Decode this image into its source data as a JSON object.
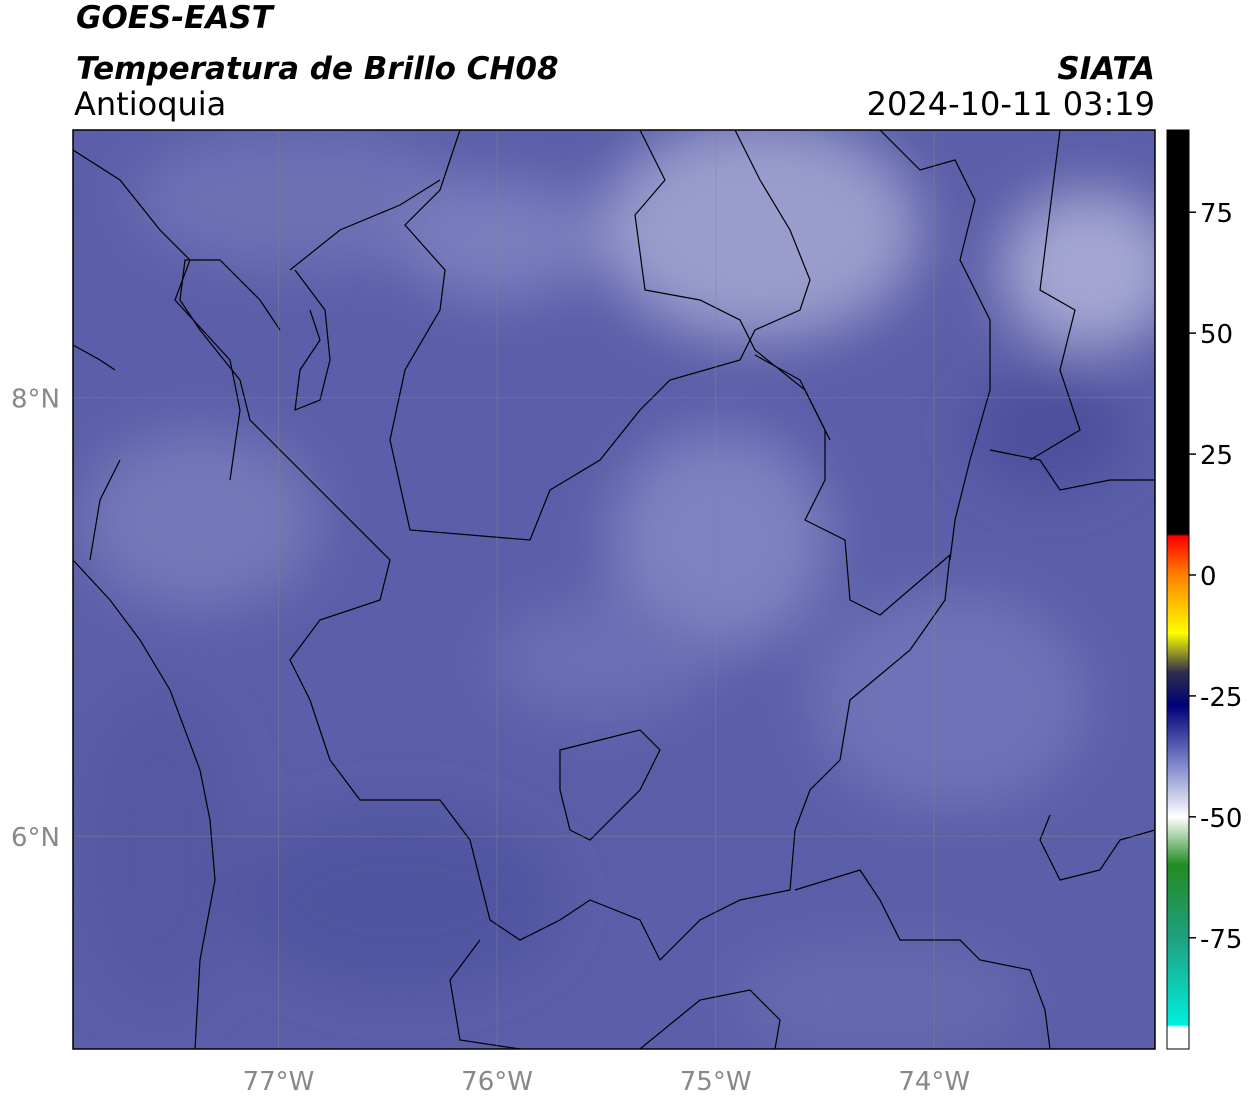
{
  "map": {
    "title": "GOES-EAST",
    "subtitle": "Temperatura de Brillo CH08",
    "region": "Antioquia",
    "source": "SIATA",
    "datetime": "2024-10-11 03:19",
    "xlim": [
      -77.94,
      -72.99
    ],
    "ylim": [
      5.03,
      9.22
    ],
    "xticks": [
      {
        "value": -77,
        "label": "77°W"
      },
      {
        "value": -76,
        "label": "76°W"
      },
      {
        "value": -75,
        "label": "75°W"
      },
      {
        "value": -74,
        "label": "74°W"
      }
    ],
    "yticks": [
      {
        "value": 8,
        "label": "8°N"
      },
      {
        "value": 6,
        "label": "6°N"
      }
    ],
    "grid": true,
    "colorbar": {
      "lim": [
        -98,
        92
      ],
      "ticks": [
        75,
        50,
        25,
        0,
        -25,
        -50,
        -75
      ],
      "stops": [
        {
          "value": 92,
          "color": "#000000"
        },
        {
          "value": 8.5,
          "color": "#000000"
        },
        {
          "value": 8,
          "color": "#ff0000"
        },
        {
          "value": 0,
          "color": "#ff8000"
        },
        {
          "value": -12,
          "color": "#ffff00"
        },
        {
          "value": -20,
          "color": "#30304a"
        },
        {
          "value": -27,
          "color": "#00007a"
        },
        {
          "value": -40,
          "color": "#8890d0"
        },
        {
          "value": -50,
          "color": "#ffffff"
        },
        {
          "value": -60,
          "color": "#228b22"
        },
        {
          "value": -75,
          "color": "#20a080"
        },
        {
          "value": -93,
          "color": "#00eedd"
        },
        {
          "value": -93.5,
          "color": "#ffffff"
        },
        {
          "value": -98,
          "color": "#ffffff"
        }
      ]
    }
  }
}
